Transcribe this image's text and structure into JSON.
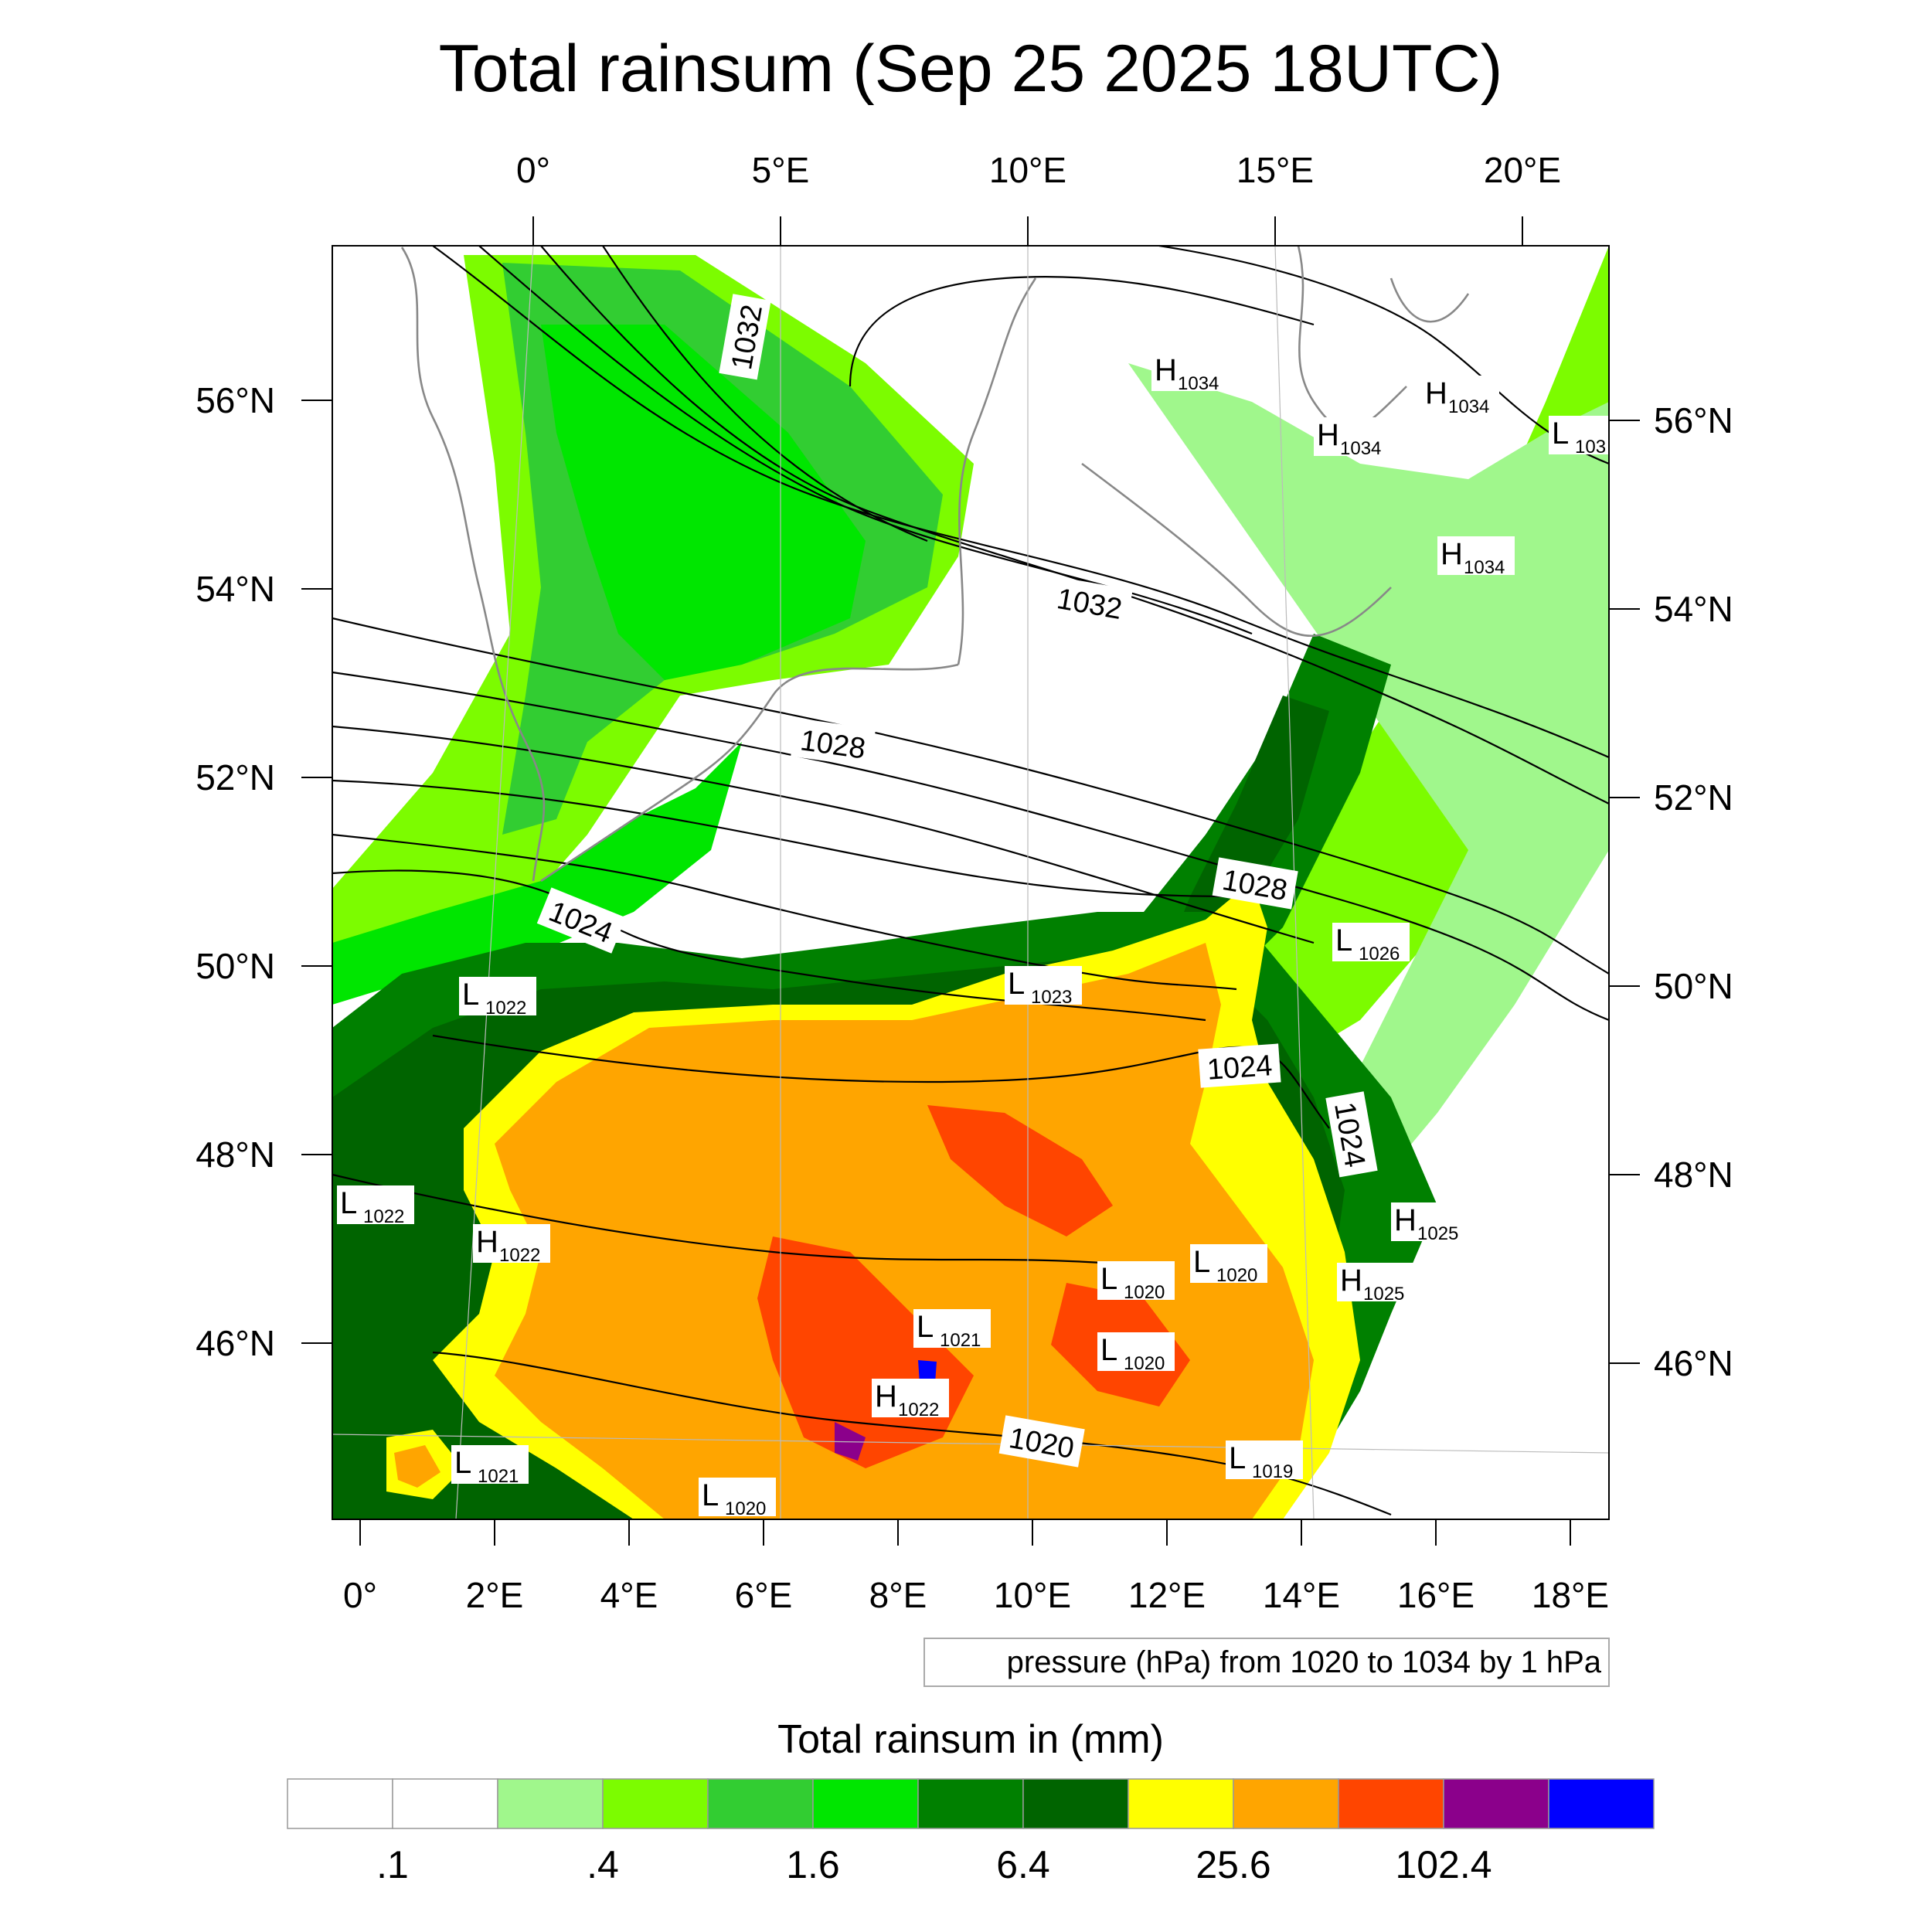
{
  "title": "Total rainsum (Sep 25 2025 18UTC)",
  "top_lon_labels": [
    "0°",
    "5°E",
    "10°E",
    "15°E",
    "20°E"
  ],
  "bottom_lon_labels": [
    "0°",
    "2°E",
    "4°E",
    "6°E",
    "8°E",
    "10°E",
    "12°E",
    "14°E",
    "16°E",
    "18°E"
  ],
  "left_lat_labels": [
    "56°N",
    "54°N",
    "52°N",
    "50°N",
    "48°N",
    "46°N"
  ],
  "right_lat_labels": [
    "56°N",
    "54°N",
    "52°N",
    "50°N",
    "48°N",
    "46°N"
  ],
  "contour_info": "pressure (hPa) from 1020 to 1034 by 1 hPa",
  "colorbar": {
    "title": "Total rainsum in (mm)",
    "labels": [
      ".1",
      ".4",
      "1.6",
      "6.4",
      "25.6",
      "102.4"
    ],
    "colors": [
      "#ffffff",
      "#ffffff",
      "#a0f78c",
      "#7cfc00",
      "#32cd32",
      "#00e600",
      "#008000",
      "#006400",
      "#ffff00",
      "#ffa500",
      "#ff4500",
      "#8b008b",
      "#0000ff"
    ]
  },
  "isobar_labels": [
    {
      "text": "1032"
    },
    {
      "text": "1032"
    },
    {
      "text": "1028"
    },
    {
      "text": "1028"
    },
    {
      "text": "1024"
    },
    {
      "text": "1024"
    },
    {
      "text": "1024"
    },
    {
      "text": "1020"
    }
  ],
  "pressure_systems": [
    {
      "type": "H",
      "value": "1034"
    },
    {
      "type": "H",
      "value": "1034"
    },
    {
      "type": "H",
      "value": "1034"
    },
    {
      "type": "L",
      "value": "103"
    },
    {
      "type": "H",
      "value": "1034"
    },
    {
      "type": "L",
      "value": "1026"
    },
    {
      "type": "L",
      "value": "1023"
    },
    {
      "type": "L",
      "value": "1022"
    },
    {
      "type": "L",
      "value": "1022"
    },
    {
      "type": "H",
      "value": "1022"
    },
    {
      "type": "H",
      "value": "1025"
    },
    {
      "type": "H",
      "value": "1025"
    },
    {
      "type": "L",
      "value": "1020"
    },
    {
      "type": "L",
      "value": "1020"
    },
    {
      "type": "L",
      "value": "1021"
    },
    {
      "type": "H",
      "value": "1022"
    },
    {
      "type": "L",
      "value": "1020"
    },
    {
      "type": "L",
      "value": "1019"
    },
    {
      "type": "L",
      "value": "1021"
    },
    {
      "type": "L",
      "value": "1020"
    }
  ]
}
